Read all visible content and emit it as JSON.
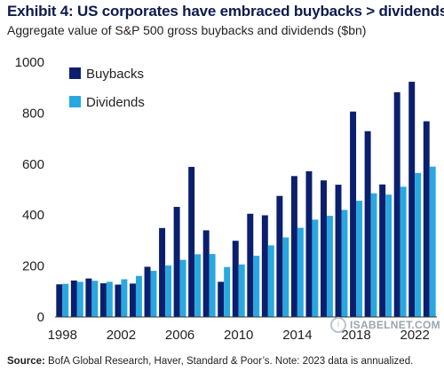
{
  "title": "Exhibit 4: US corporates have embraced buybacks > dividends",
  "subtitle": "Aggregate value of S&P 500 gross buybacks and dividends ($bn)",
  "source_label": "Source:",
  "source_text": " BofA Global Research, Haver, Standard & Poor’s. Note: 2023 data is annualized.",
  "watermark": "ISABELNET.COM",
  "colors": {
    "buybacks": "#0b1f6e",
    "dividends": "#29a8e0"
  },
  "chart_data": {
    "type": "bar",
    "x": [
      1998,
      1999,
      2000,
      2001,
      2002,
      2003,
      2004,
      2005,
      2006,
      2007,
      2008,
      2009,
      2010,
      2011,
      2012,
      2013,
      2014,
      2015,
      2016,
      2017,
      2018,
      2019,
      2020,
      2021,
      2022,
      2023
    ],
    "x_tick_labels": [
      "1998",
      "2002",
      "2006",
      "2010",
      "2014",
      "2018",
      "2022"
    ],
    "y_ticks": [
      0,
      200,
      400,
      600,
      800,
      1000
    ],
    "ylim": [
      0,
      1000
    ],
    "legend_position": "top-left",
    "grid": false,
    "series": [
      {
        "name": "Buybacks",
        "values": [
          128,
          143,
          151,
          132,
          127,
          131,
          197,
          349,
          432,
          589,
          340,
          138,
          299,
          405,
          399,
          475,
          553,
          572,
          536,
          519,
          806,
          729,
          520,
          882,
          923,
          768
        ]
      },
      {
        "name": "Dividends",
        "values": [
          130,
          138,
          142,
          138,
          148,
          161,
          181,
          202,
          224,
          246,
          247,
          196,
          206,
          240,
          281,
          312,
          350,
          382,
          397,
          420,
          456,
          485,
          480,
          511,
          565,
          590
        ]
      }
    ]
  }
}
